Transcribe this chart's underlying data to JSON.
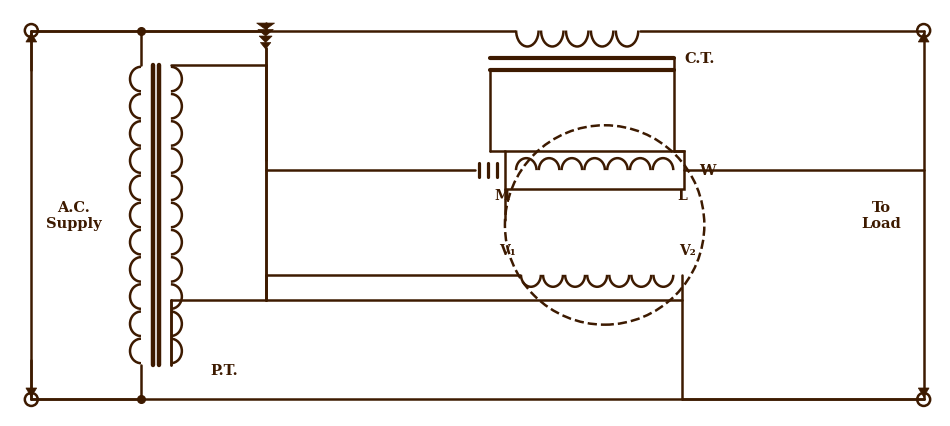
{
  "bg_color": "#ffffff",
  "line_color": "#3d1a00",
  "lw": 1.8,
  "lw_thick": 3.0,
  "fig_w": 9.5,
  "fig_h": 4.27,
  "labels": {
    "ac_supply": "A.C.\nSupply",
    "pt": "P.T.",
    "ct": "C.T.",
    "to_load": "To\nLoad",
    "M": "M",
    "L": "L",
    "W": "W",
    "V1": "V₁",
    "V2": "V₂"
  },
  "xlim": [
    0,
    19
  ],
  "ylim": [
    0,
    8.5
  ]
}
